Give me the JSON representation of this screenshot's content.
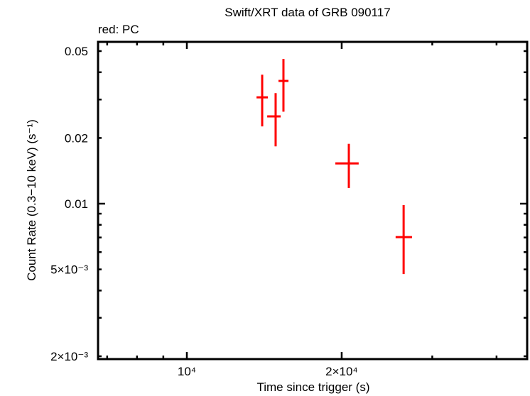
{
  "chart_data": {
    "type": "scatter",
    "title": "Swift/XRT data of GRB 090117",
    "subtitle": "red: PC",
    "xlabel": "Time since trigger (s)",
    "ylabel": "Count Rate (0.3−10 keV) (s⁻¹)",
    "xscale": "log",
    "yscale": "log",
    "xlim": [
      6500,
      48000
    ],
    "ylim": [
      0.00193,
      0.0555
    ],
    "grid": false,
    "legend": null,
    "x_ticks": [
      {
        "value": 10000,
        "label": "10⁴"
      },
      {
        "value": 20000,
        "label": "2×10⁴"
      }
    ],
    "y_ticks": [
      {
        "value": 0.05,
        "label": "0.05"
      },
      {
        "value": 0.02,
        "label": "0.02"
      },
      {
        "value": 0.01,
        "label": "0.01"
      },
      {
        "value": 0.005,
        "label": "5×10⁻³"
      },
      {
        "value": 0.002,
        "label": "2×10⁻³"
      }
    ],
    "series": [
      {
        "name": "PC",
        "color": "#ff0000",
        "points": [
          {
            "x": 14010,
            "x_lo": 13660,
            "x_hi": 14370,
            "y": 0.0307,
            "y_lo": 0.0226,
            "y_hi": 0.039
          },
          {
            "x": 14880,
            "x_lo": 14330,
            "x_hi": 15220,
            "y": 0.0251,
            "y_lo": 0.0183,
            "y_hi": 0.0321
          },
          {
            "x": 15410,
            "x_lo": 15070,
            "x_hi": 15760,
            "y": 0.0365,
            "y_lo": 0.0264,
            "y_hi": 0.046
          },
          {
            "x": 20650,
            "x_lo": 19440,
            "x_hi": 21580,
            "y": 0.0153,
            "y_lo": 0.0118,
            "y_hi": 0.0188
          },
          {
            "x": 26390,
            "x_lo": 25460,
            "x_hi": 27400,
            "y": 0.00703,
            "y_lo": 0.00476,
            "y_hi": 0.00985
          }
        ]
      }
    ]
  }
}
